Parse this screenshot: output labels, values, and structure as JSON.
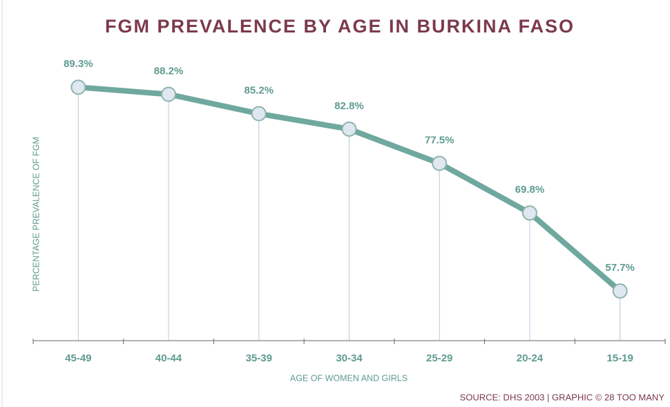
{
  "chart_data": {
    "type": "line",
    "title": "FGM PREVALENCE BY AGE IN BURKINA FASO",
    "xlabel": "AGE OF WOMEN AND GIRLS",
    "ylabel": "PERCENTAGE PREVALENCE OF FGM",
    "source": "SOURCE: DHS 2003 | GRAPHIC © 28 TOO MANY",
    "categories": [
      "45-49",
      "40-44",
      "35-39",
      "30-34",
      "25-29",
      "20-24",
      "15-19"
    ],
    "values": [
      89.3,
      88.2,
      85.2,
      82.8,
      77.5,
      69.8,
      57.7
    ],
    "value_labels": [
      "89.3%",
      "88.2%",
      "85.2%",
      "82.8%",
      "77.5%",
      "69.8%",
      "57.7%"
    ],
    "color": "#6fa89e",
    "ylim": [
      50,
      95
    ]
  }
}
